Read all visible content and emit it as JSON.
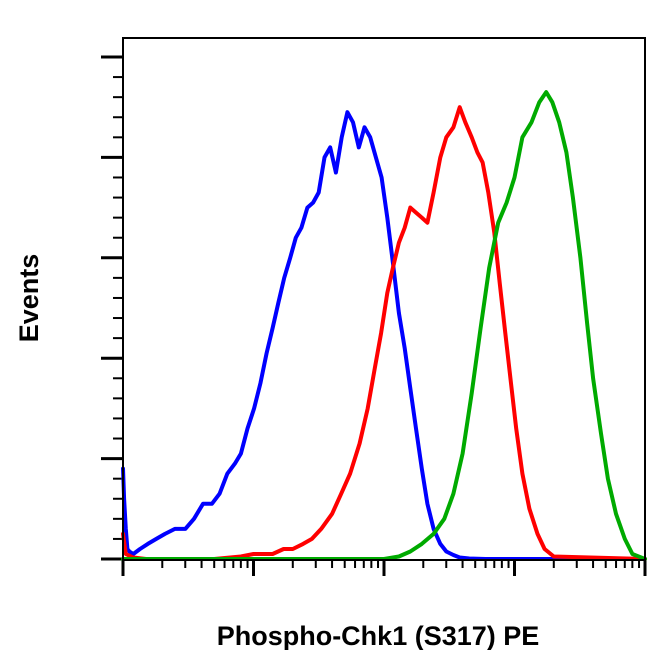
{
  "chart_data": {
    "type": "line",
    "title": "",
    "xlabel": "Phospho-Chk1 (S317) PE",
    "ylabel": "Events",
    "x_scale": "log",
    "xlim": [
      1,
      10000
    ],
    "ylim": [
      0,
      100
    ],
    "grid": false,
    "legend": "none",
    "tick_labels": false,
    "series": [
      {
        "color": "#0000ff",
        "x": [
          1.0,
          1.02,
          1.05,
          1.08,
          1.12,
          1.2,
          1.35,
          1.55,
          1.8,
          2.1,
          2.5,
          3.0,
          3.5,
          4.1,
          4.8,
          5.5,
          6.3,
          7.2,
          8.0,
          9.0,
          10.1,
          11.3,
          12.6,
          14.0,
          15.5,
          17.2,
          19.1,
          21.1,
          23.3,
          25.9,
          28.6,
          31.6,
          35.0,
          38.7,
          42.8,
          47.4,
          52.4,
          57.9,
          64.1,
          70.9,
          78.4,
          86.7,
          95.9,
          106,
          117,
          130,
          144,
          159,
          176,
          195,
          215,
          240,
          270,
          300,
          340,
          380,
          450,
          600,
          10000
        ],
        "y": [
          18,
          12,
          6,
          2,
          1.5,
          1,
          2,
          3,
          4,
          5,
          6,
          6,
          8,
          11,
          11,
          13,
          17,
          19,
          21,
          26,
          30,
          35,
          41,
          46,
          51,
          56,
          60,
          64,
          66,
          70,
          71,
          73,
          80,
          82,
          77,
          84,
          89,
          87,
          82,
          86,
          84,
          80,
          76,
          68,
          59,
          49,
          42,
          34,
          26,
          18,
          11,
          6,
          3,
          1.5,
          0.8,
          0.3,
          0.1,
          0,
          0
        ]
      },
      {
        "color": "#ff0000",
        "x": [
          1.0,
          1.05,
          1.2,
          1.5,
          2,
          3,
          5,
          8,
          10,
          12,
          14,
          17,
          20,
          24,
          28,
          33,
          40,
          47,
          55,
          65,
          75,
          85,
          95,
          106,
          117,
          130,
          144,
          159,
          176,
          195,
          215,
          240,
          270,
          300,
          340,
          380,
          420,
          470,
          520,
          570,
          630,
          700,
          770,
          850,
          940,
          1030,
          1150,
          1300,
          1500,
          1700,
          2000,
          10000
        ],
        "y": [
          5,
          1,
          0.3,
          0,
          0,
          0,
          0,
          0.5,
          1,
          1,
          1,
          2,
          2,
          3,
          4,
          6,
          9,
          13,
          17,
          23,
          30,
          38,
          45,
          53,
          58,
          63,
          66,
          70,
          69,
          68,
          67,
          73,
          80,
          84,
          86,
          90,
          87,
          84,
          81,
          79,
          73,
          65,
          55,
          45,
          35,
          26,
          17,
          10,
          5,
          2,
          0.5,
          0
        ]
      },
      {
        "color": "#00aa00",
        "x": [
          1.0,
          10,
          100,
          130,
          159,
          195,
          240,
          290,
          340,
          400,
          470,
          550,
          640,
          750,
          870,
          1000,
          1150,
          1350,
          1550,
          1750,
          1950,
          2200,
          2500,
          2800,
          3200,
          3600,
          4000,
          4600,
          5200,
          6000,
          7000,
          8000,
          10000
        ],
        "y": [
          0,
          0,
          0,
          0.5,
          1.5,
          3,
          5,
          8,
          13,
          21,
          33,
          46,
          58,
          67,
          71,
          76,
          84,
          87,
          91,
          93,
          91,
          87,
          81,
          72,
          60,
          47,
          36,
          25,
          16,
          9,
          4,
          1,
          0
        ]
      }
    ]
  }
}
